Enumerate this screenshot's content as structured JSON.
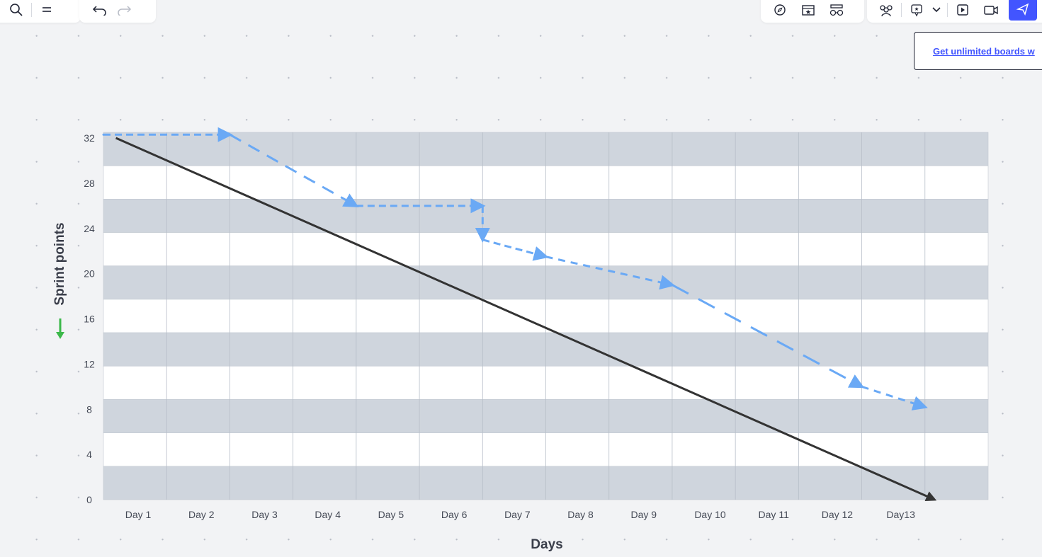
{
  "toolbar_left": {
    "search_icon": "search-icon",
    "menu_icon": "menu-icon",
    "undo_icon": "undo-icon",
    "redo_icon": "redo-icon"
  },
  "toolbar_right": {
    "icons": [
      "compass-icon",
      "star-template-icon",
      "glasses-icon",
      "collaborators-icon",
      "reactions-icon",
      "chevron-down-icon",
      "present-icon",
      "video-icon",
      "share-icon"
    ],
    "accent": "#4255ff"
  },
  "banner": {
    "text": "Get unlimited boards w"
  },
  "chart_data": {
    "type": "line",
    "xlabel": "Days",
    "ylabel": "Sprint points",
    "categories": [
      "Day 1",
      "Day 2",
      "Day 3",
      "Day 4",
      "Day 5",
      "Day 6",
      "Day 7",
      "Day 8",
      "Day 9",
      "Day 10",
      "Day 11",
      "Day 12",
      "Day13"
    ],
    "y_ticks": [
      "32",
      "28",
      "24",
      "20",
      "16",
      "12",
      "8",
      "4",
      "0"
    ],
    "ylim": [
      0,
      32
    ],
    "grid": true,
    "series": [
      {
        "style": "solid",
        "color": "#333333",
        "points": [
          [
            0.5,
            32
          ],
          [
            13.4,
            0
          ]
        ]
      },
      {
        "style": "dashed",
        "color": "#6aa9f5",
        "points": [
          [
            0,
            32.3
          ],
          [
            2,
            32.3
          ],
          [
            4,
            26
          ],
          [
            6,
            26
          ],
          [
            6,
            23
          ],
          [
            7,
            21.5
          ],
          [
            9,
            19
          ],
          [
            12,
            10
          ],
          [
            13,
            8.2
          ]
        ]
      }
    ],
    "band_colors": [
      "#cfd5dd",
      "#ffffff"
    ],
    "trend_arrow_color": "#3cb84a"
  }
}
